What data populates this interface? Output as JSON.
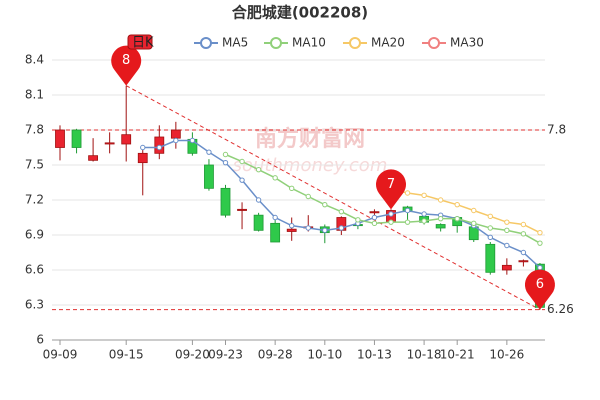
{
  "chart_data": {
    "type": "candlestick",
    "title": "合肥城建(002208)",
    "watermark": [
      "南方财富网",
      "southmoney.com"
    ],
    "categories": [
      "09-09",
      null,
      null,
      null,
      "09-15",
      null,
      null,
      null,
      "09-20",
      null,
      "09-23",
      null,
      null,
      "09-28",
      null,
      null,
      "10-10",
      null,
      null,
      "10-13",
      null,
      null,
      "10-18",
      null,
      "10-21",
      null,
      null,
      "10-26",
      null,
      null
    ],
    "candle": {
      "name": "日K",
      "up_color": "#e8232f",
      "down_color": "#2fc94a",
      "open": [
        7.65,
        7.8,
        7.54,
        7.68,
        7.68,
        7.52,
        7.6,
        7.73,
        7.72,
        7.5,
        7.3,
        7.11,
        7.07,
        7.0,
        6.93,
        6.96,
        6.97,
        6.94,
        6.99,
        7.09,
        7.01,
        7.14,
        7.06,
        6.99,
        7.05,
        6.97,
        6.82,
        6.6,
        6.67,
        6.65
      ],
      "close": [
        7.8,
        7.65,
        7.58,
        7.69,
        7.76,
        7.6,
        7.74,
        7.8,
        7.6,
        7.3,
        7.07,
        7.12,
        6.94,
        6.84,
        6.95,
        6.97,
        6.92,
        7.05,
        6.98,
        7.1,
        7.11,
        7.1,
        7.01,
        6.96,
        6.98,
        6.86,
        6.58,
        6.64,
        6.68,
        6.28
      ],
      "high": [
        7.84,
        7.81,
        7.73,
        7.78,
        8.18,
        7.65,
        7.84,
        7.87,
        7.78,
        7.55,
        7.33,
        7.18,
        7.09,
        7.03,
        7.05,
        7.07,
        6.99,
        7.06,
        7.02,
        7.12,
        7.12,
        7.15,
        7.1,
        7.0,
        7.06,
        6.99,
        6.84,
        6.7,
        6.69,
        6.66
      ],
      "low": [
        7.54,
        7.6,
        7.53,
        7.6,
        7.53,
        7.24,
        7.55,
        7.64,
        7.58,
        7.28,
        7.05,
        6.95,
        6.93,
        6.84,
        6.85,
        6.93,
        6.83,
        6.9,
        6.95,
        7.07,
        6.99,
        7.03,
        6.99,
        6.93,
        6.92,
        6.84,
        6.56,
        6.56,
        6.63,
        6.26
      ]
    },
    "series": [
      {
        "name": "MA5",
        "color": "#6a8fc9",
        "values": [
          null,
          null,
          null,
          null,
          null,
          7.65,
          7.65,
          7.71,
          7.71,
          7.61,
          7.52,
          7.37,
          7.2,
          7.05,
          6.98,
          6.96,
          6.94,
          6.96,
          7.0,
          7.05,
          7.08,
          7.11,
          7.08,
          7.07,
          7.04,
          6.98,
          6.88,
          6.81,
          6.75,
          6.62
        ]
      },
      {
        "name": "MA10",
        "color": "#90d07a",
        "values": [
          null,
          null,
          null,
          null,
          null,
          null,
          null,
          null,
          null,
          null,
          7.59,
          7.53,
          7.46,
          7.39,
          7.3,
          7.23,
          7.16,
          7.1,
          7.03,
          7.0,
          7.01,
          7.01,
          7.02,
          7.04,
          7.04,
          7.0,
          6.96,
          6.94,
          6.91,
          6.83
        ]
      },
      {
        "name": "MA20",
        "color": "#f6c866",
        "values": [
          null,
          null,
          null,
          null,
          null,
          null,
          null,
          null,
          null,
          null,
          null,
          null,
          null,
          null,
          null,
          null,
          null,
          null,
          null,
          null,
          7.29,
          7.26,
          7.24,
          7.2,
          7.16,
          7.11,
          7.06,
          7.01,
          6.99,
          6.92
        ]
      },
      {
        "name": "MA30",
        "color": "#f08080",
        "values": [
          null,
          null,
          null,
          null,
          null,
          null,
          null,
          null,
          null,
          null,
          null,
          null,
          null,
          null,
          null,
          null,
          null,
          null,
          null,
          null,
          null,
          null,
          null,
          null,
          null,
          null,
          null,
          null,
          null,
          null
        ]
      }
    ],
    "markers": [
      {
        "label": "8",
        "index": 4,
        "value": 8.18
      },
      {
        "label": "7",
        "index": 20,
        "value": 7.12
      },
      {
        "label": "6",
        "index": 29,
        "value": 6.26
      }
    ],
    "hlines": [
      7.8,
      6.26
    ],
    "ylim": [
      6,
      8.4
    ],
    "yticks": [
      6,
      6.3,
      6.6,
      6.9,
      7.2,
      7.5,
      7.8,
      8.1,
      8.4
    ],
    "grid": true
  }
}
